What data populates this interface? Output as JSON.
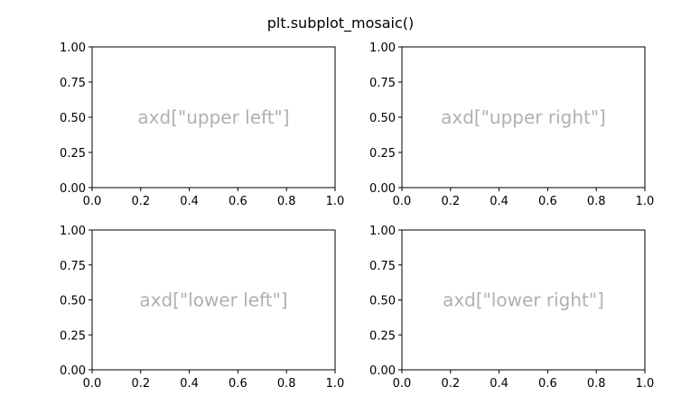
{
  "title": "plt.subplot_mosaic()",
  "label_color": "#b0b0b0",
  "chart_data": [
    {
      "type": "line",
      "name": "upper left",
      "label": "axd[\"upper left\"]",
      "xlim": [
        0,
        1
      ],
      "ylim": [
        0,
        1
      ],
      "xticks": [
        "0.0",
        "0.2",
        "0.4",
        "0.6",
        "0.8",
        "1.0"
      ],
      "yticks": [
        "0.00",
        "0.25",
        "0.50",
        "0.75",
        "1.00"
      ],
      "series": [],
      "grid": false
    },
    {
      "type": "line",
      "name": "upper right",
      "label": "axd[\"upper right\"]",
      "xlim": [
        0,
        1
      ],
      "ylim": [
        0,
        1
      ],
      "xticks": [
        "0.0",
        "0.2",
        "0.4",
        "0.6",
        "0.8",
        "1.0"
      ],
      "yticks": [
        "0.00",
        "0.25",
        "0.50",
        "0.75",
        "1.00"
      ],
      "series": [],
      "grid": false
    },
    {
      "type": "line",
      "name": "lower left",
      "label": "axd[\"lower left\"]",
      "xlim": [
        0,
        1
      ],
      "ylim": [
        0,
        1
      ],
      "xticks": [
        "0.0",
        "0.2",
        "0.4",
        "0.6",
        "0.8",
        "1.0"
      ],
      "yticks": [
        "0.00",
        "0.25",
        "0.50",
        "0.75",
        "1.00"
      ],
      "series": [],
      "grid": false
    },
    {
      "type": "line",
      "name": "lower right",
      "label": "axd[\"lower right\"]",
      "xlim": [
        0,
        1
      ],
      "ylim": [
        0,
        1
      ],
      "xticks": [
        "0.0",
        "0.2",
        "0.4",
        "0.6",
        "0.8",
        "1.0"
      ],
      "yticks": [
        "0.00",
        "0.25",
        "0.50",
        "0.75",
        "1.00"
      ],
      "series": [],
      "grid": false
    }
  ]
}
